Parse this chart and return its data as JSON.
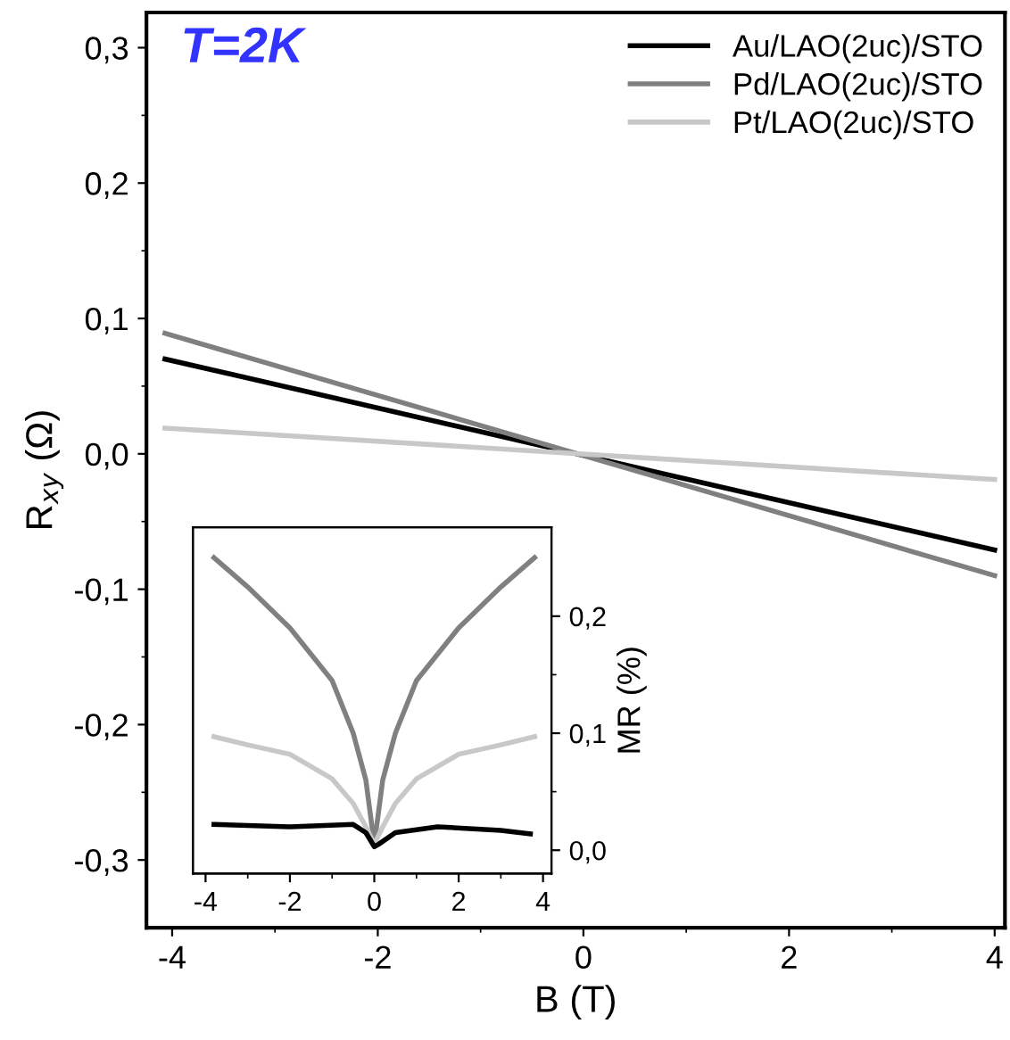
{
  "chart_data": [
    {
      "type": "line",
      "xlabel": "B (T)",
      "ylabel": "R$_{xy}$ (Ω)",
      "annotations": [
        "T=2K"
      ],
      "xlim": [
        -4.25,
        4.1
      ],
      "xticks": [
        -4,
        -2,
        0,
        2,
        4
      ],
      "ylim": [
        -0.35,
        0.326
      ],
      "yticks": [
        {
          "value": -0.3,
          "label": "-0,3"
        },
        {
          "value": -0.2,
          "label": "-0,2"
        },
        {
          "value": -0.1,
          "label": "-0,1"
        },
        {
          "value": 0,
          "label": "0,0"
        },
        {
          "value": 0.1,
          "label": "0,1"
        },
        {
          "value": 0.2,
          "label": "0,2"
        },
        {
          "value": 0.3,
          "label": "0,3"
        }
      ],
      "legend": "top right",
      "grid": false,
      "series": [
        {
          "name": "Au/LAO(2uc)/STO",
          "color": "#000000",
          "x": [
            -4.07,
            4.0
          ],
          "values": [
            0.07,
            -0.071
          ]
        },
        {
          "name": "Pd/LAO(2uc)/STO",
          "color": "#808080",
          "x": [
            -4.07,
            4.0
          ],
          "values": [
            0.089,
            -0.09
          ]
        },
        {
          "name": "Pt/LAO(2uc)/STO",
          "color": "#c8c8c8",
          "x": [
            -4.07,
            4.0
          ],
          "values": [
            0.019,
            -0.019
          ]
        }
      ]
    },
    {
      "type": "line",
      "y2label": "MR (%)",
      "xlim": [
        -4.3,
        4.2
      ],
      "xticks": [
        -4,
        -2,
        0,
        2,
        4
      ],
      "y2lim": [
        -0.02,
        0.276
      ],
      "y2ticks": [
        {
          "value": 0,
          "label": "0,0"
        },
        {
          "value": 0.1,
          "label": "0,1"
        },
        {
          "value": 0.2,
          "label": "0,2"
        }
      ],
      "grid": false,
      "series": [
        {
          "color": "#808080",
          "axis": "y2",
          "x": [
            -3.8,
            -3,
            -2,
            -1,
            -0.5,
            -0.2,
            0,
            0.2,
            0.5,
            1,
            2,
            3,
            3.8
          ],
          "values": [
            0.25,
            0.225,
            0.19,
            0.145,
            0.1,
            0.06,
            0.005,
            0.06,
            0.1,
            0.145,
            0.19,
            0.225,
            0.25
          ]
        },
        {
          "color": "#c8c8c8",
          "axis": "y2",
          "x": [
            -3.8,
            -3,
            -2,
            -1,
            -0.5,
            -0.2,
            0,
            0.2,
            0.5,
            1,
            2,
            3,
            3.8
          ],
          "values": [
            0.097,
            0.09,
            0.082,
            0.061,
            0.04,
            0.02,
            0.005,
            0.02,
            0.04,
            0.061,
            0.082,
            0.09,
            0.097
          ]
        },
        {
          "color": "#000000",
          "axis": "y2",
          "x": [
            -3.8,
            -2,
            -0.5,
            -0.2,
            0,
            0.1,
            0.5,
            1.5,
            3,
            3.7
          ],
          "values": [
            0.022,
            0.02,
            0.022,
            0.015,
            0.003,
            0.005,
            0.015,
            0.02,
            0.017,
            0.014
          ]
        }
      ]
    }
  ]
}
